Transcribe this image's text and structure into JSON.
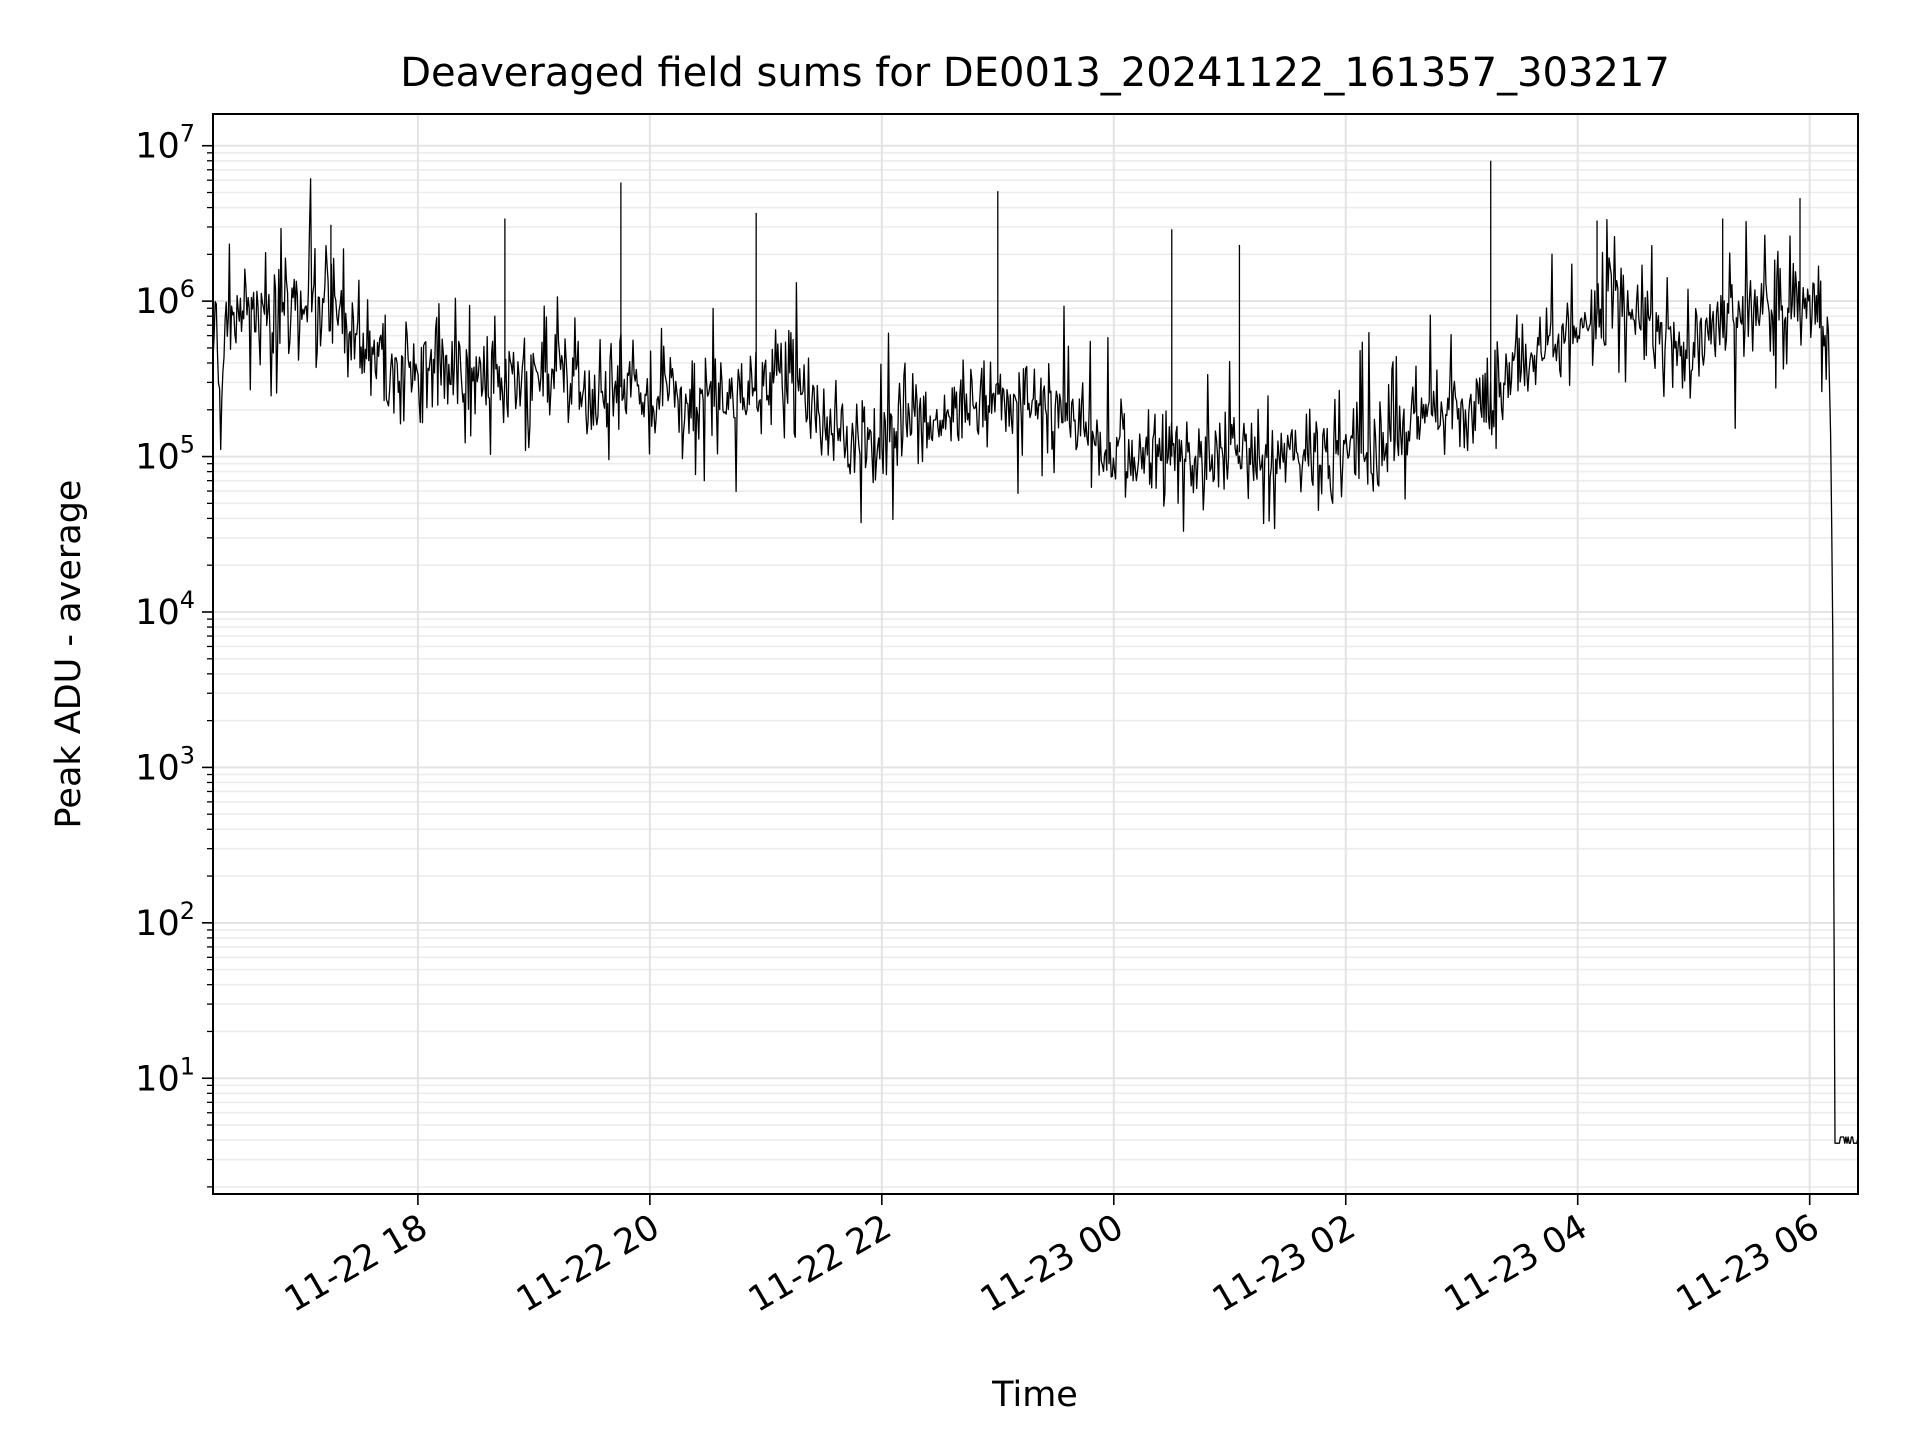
{
  "chart_data": {
    "type": "line",
    "title": "Deaveraged field sums for DE0013_20241122_161357_303217",
    "xlabel": "Time",
    "ylabel": "Peak ADU - average",
    "yscale": "log",
    "grid": true,
    "grid_which": "both",
    "xlim": [
      "2024-11-22 16:14",
      "2024-11-23 06:25"
    ],
    "ylim": [
      1.8,
      16000000
    ],
    "x_ticks": [
      {
        "label": "11-22 18",
        "value": "2024-11-22 18:00"
      },
      {
        "label": "11-22 20",
        "value": "2024-11-22 20:00"
      },
      {
        "label": "11-22 22",
        "value": "2024-11-22 22:00"
      },
      {
        "label": "11-23 00",
        "value": "2024-11-23 00:00"
      },
      {
        "label": "11-23 02",
        "value": "2024-11-23 02:00"
      },
      {
        "label": "11-23 04",
        "value": "2024-11-23 04:00"
      },
      {
        "label": "11-23 06",
        "value": "2024-11-23 06:00"
      }
    ],
    "y_ticks": [
      {
        "base": "10",
        "exp": "1",
        "value": 10
      },
      {
        "base": "10",
        "exp": "2",
        "value": 100
      },
      {
        "base": "10",
        "exp": "3",
        "value": 1000
      },
      {
        "base": "10",
        "exp": "4",
        "value": 10000
      },
      {
        "base": "10",
        "exp": "5",
        "value": 100000
      },
      {
        "base": "10",
        "exp": "6",
        "value": 1000000
      },
      {
        "base": "10",
        "exp": "7",
        "value": 10000000
      }
    ],
    "series": [
      {
        "color": "#000000",
        "points": [
          [
            "2024-11-22 16:14",
            500000
          ],
          [
            "2024-11-22 16:16",
            700000
          ],
          [
            "2024-11-22 16:18",
            120000
          ],
          [
            "2024-11-22 16:20",
            600000
          ],
          [
            "2024-11-22 16:30",
            900000
          ],
          [
            "2024-11-22 16:45",
            700000
          ],
          [
            "2024-11-22 17:00",
            1000000
          ],
          [
            "2024-11-22 17:15",
            900000
          ],
          [
            "2024-11-22 17:30",
            600000
          ],
          [
            "2024-11-22 17:45",
            400000
          ],
          [
            "2024-11-22 18:00",
            380000
          ],
          [
            "2024-11-22 18:15",
            330000
          ],
          [
            "2024-11-22 18:30",
            320000
          ],
          [
            "2024-11-22 18:45",
            300000
          ],
          [
            "2024-11-22 19:00",
            330000
          ],
          [
            "2024-11-22 19:15",
            400000
          ],
          [
            "2024-11-22 19:30",
            230000
          ],
          [
            "2024-11-22 19:45",
            280000
          ],
          [
            "2024-11-22 20:00",
            250000
          ],
          [
            "2024-11-22 20:15",
            240000
          ],
          [
            "2024-11-22 20:30",
            230000
          ],
          [
            "2024-11-22 20:45",
            250000
          ],
          [
            "2024-11-22 21:00",
            270000
          ],
          [
            "2024-11-22 21:15",
            330000
          ],
          [
            "2024-11-22 21:30",
            150000
          ],
          [
            "2024-11-22 21:45",
            120000
          ],
          [
            "2024-11-22 22:00",
            140000
          ],
          [
            "2024-11-22 22:15",
            170000
          ],
          [
            "2024-11-22 22:30",
            180000
          ],
          [
            "2024-11-22 22:45",
            200000
          ],
          [
            "2024-11-22 23:00",
            250000
          ],
          [
            "2024-11-22 23:15",
            200000
          ],
          [
            "2024-11-22 23:30",
            180000
          ],
          [
            "2024-11-22 23:45",
            160000
          ],
          [
            "2024-11-23 00:00",
            110000
          ],
          [
            "2024-11-23 00:15",
            105000
          ],
          [
            "2024-11-23 00:30",
            100000
          ],
          [
            "2024-11-23 00:45",
            100000
          ],
          [
            "2024-11-23 01:00",
            110000
          ],
          [
            "2024-11-23 01:15",
            100000
          ],
          [
            "2024-11-23 01:30",
            105000
          ],
          [
            "2024-11-23 01:45",
            110000
          ],
          [
            "2024-11-23 02:00",
            120000
          ],
          [
            "2024-11-23 02:15",
            130000
          ],
          [
            "2024-11-23 02:30",
            170000
          ],
          [
            "2024-11-23 02:45",
            190000
          ],
          [
            "2024-11-23 03:00",
            200000
          ],
          [
            "2024-11-23 03:15",
            230000
          ],
          [
            "2024-11-23 03:30",
            420000
          ],
          [
            "2024-11-23 03:45",
            500000
          ],
          [
            "2024-11-23 04:00",
            700000
          ],
          [
            "2024-11-23 04:15",
            900000
          ],
          [
            "2024-11-23 04:30",
            1000000
          ],
          [
            "2024-11-23 04:45",
            550000
          ],
          [
            "2024-11-23 05:00",
            550000
          ],
          [
            "2024-11-23 05:15",
            700000
          ],
          [
            "2024-11-23 05:30",
            900000
          ],
          [
            "2024-11-23 05:45",
            800000
          ],
          [
            "2024-11-23 06:00",
            900000
          ],
          [
            "2024-11-23 06:05",
            850000
          ],
          [
            "2024-11-23 06:10",
            400000
          ],
          [
            "2024-11-23 06:11",
            110000
          ],
          [
            "2024-11-23 06:12",
            6000
          ],
          [
            "2024-11-23 06:13",
            4
          ],
          [
            "2024-11-23 06:25",
            4
          ]
        ]
      }
    ],
    "spikes": [
      {
        "x": "2024-11-22 17:15",
        "y": 3100000
      },
      {
        "x": "2024-11-22 18:45",
        "y": 3400000
      },
      {
        "x": "2024-11-22 19:45",
        "y": 5800000
      },
      {
        "x": "2024-11-22 20:55",
        "y": 3700000
      },
      {
        "x": "2024-11-22 23:00",
        "y": 5100000
      },
      {
        "x": "2024-11-23 00:30",
        "y": 2900000
      },
      {
        "x": "2024-11-23 01:05",
        "y": 2300000
      },
      {
        "x": "2024-11-23 03:15",
        "y": 8000000
      },
      {
        "x": "2024-11-23 04:10",
        "y": 3300000
      },
      {
        "x": "2024-11-23 05:15",
        "y": 3400000
      },
      {
        "x": "2024-11-23 05:55",
        "y": 4600000
      }
    ]
  }
}
